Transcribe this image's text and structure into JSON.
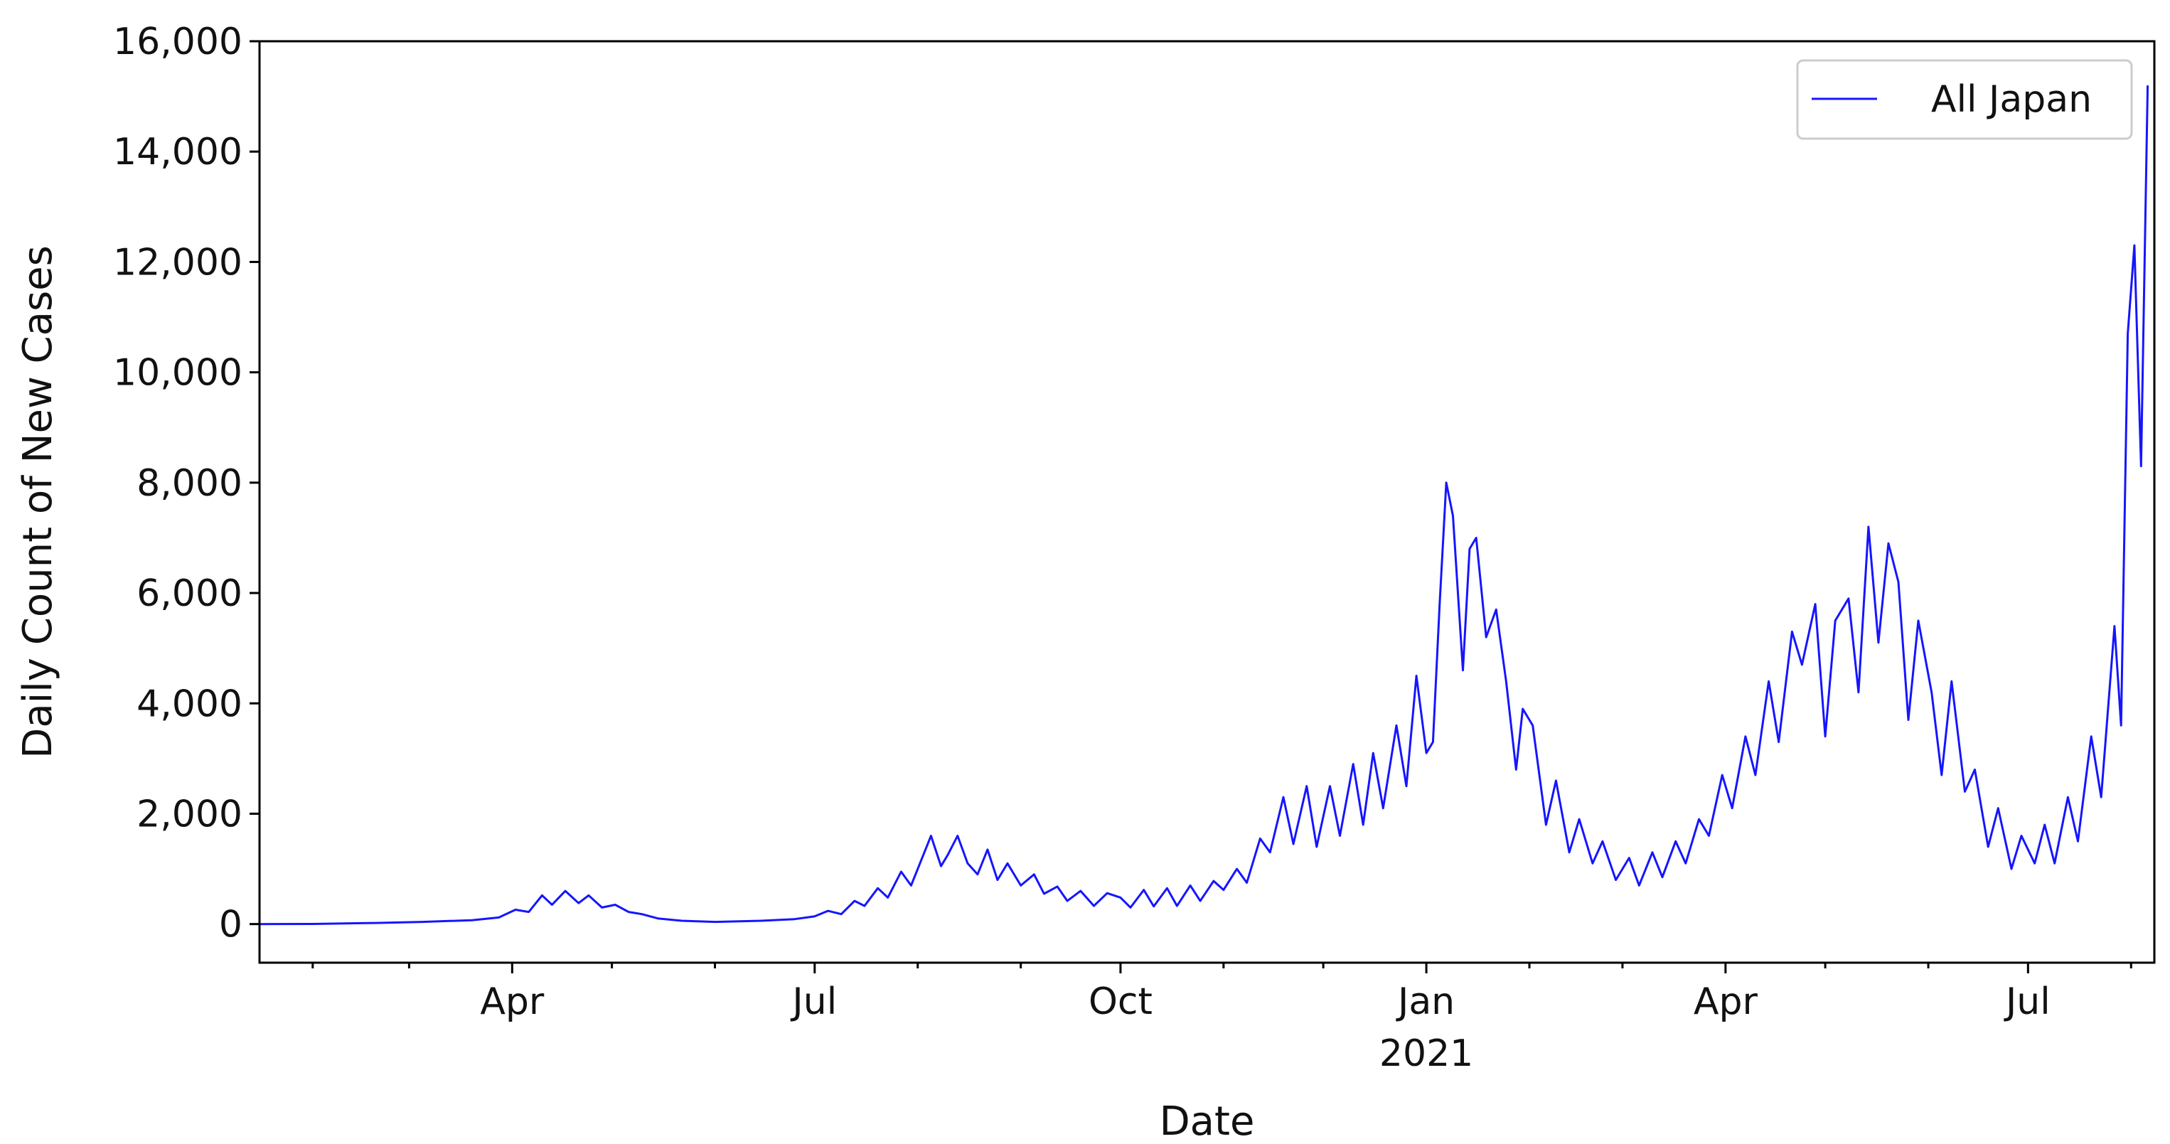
{
  "chart_data": {
    "type": "line",
    "xlabel": "Date",
    "ylabel": "Daily Count of New Cases",
    "ylim": [
      -700,
      16000
    ],
    "xlim": [
      "2020-01-16",
      "2021-08-08"
    ],
    "y_ticks": [
      0,
      2000,
      4000,
      6000,
      8000,
      10000,
      12000,
      14000,
      16000
    ],
    "y_tick_labels": [
      "0",
      "2,000",
      "4,000",
      "6,000",
      "8,000",
      "10,000",
      "12,000",
      "14,000",
      "16,000"
    ],
    "x_major_ticks": [
      {
        "date": "2020-04-01",
        "label": "Apr"
      },
      {
        "date": "2020-07-01",
        "label": "Jul"
      },
      {
        "date": "2020-10-01",
        "label": "Oct"
      },
      {
        "date": "2021-01-01",
        "label": "Jan",
        "year_label": "2021"
      },
      {
        "date": "2021-04-01",
        "label": "Apr"
      },
      {
        "date": "2021-07-01",
        "label": "Jul"
      }
    ],
    "x_minor_ticks": [
      "2020-02-01",
      "2020-03-01",
      "2020-05-01",
      "2020-06-01",
      "2020-08-01",
      "2020-09-01",
      "2020-11-01",
      "2020-12-01",
      "2021-02-01",
      "2021-03-01",
      "2021-05-01",
      "2021-06-01",
      "2021-08-01"
    ],
    "legend": {
      "position": "top-right"
    },
    "grid": false,
    "series": [
      {
        "name": "All Japan",
        "color": "#1515ff",
        "points": [
          [
            "2020-01-16",
            0
          ],
          [
            "2020-02-01",
            2
          ],
          [
            "2020-02-20",
            20
          ],
          [
            "2020-03-05",
            40
          ],
          [
            "2020-03-20",
            70
          ],
          [
            "2020-03-28",
            120
          ],
          [
            "2020-04-02",
            260
          ],
          [
            "2020-04-06",
            220
          ],
          [
            "2020-04-10",
            520
          ],
          [
            "2020-04-13",
            350
          ],
          [
            "2020-04-17",
            600
          ],
          [
            "2020-04-21",
            380
          ],
          [
            "2020-04-24",
            520
          ],
          [
            "2020-04-28",
            300
          ],
          [
            "2020-05-02",
            350
          ],
          [
            "2020-05-06",
            220
          ],
          [
            "2020-05-10",
            180
          ],
          [
            "2020-05-15",
            100
          ],
          [
            "2020-05-22",
            60
          ],
          [
            "2020-06-01",
            40
          ],
          [
            "2020-06-15",
            60
          ],
          [
            "2020-06-25",
            90
          ],
          [
            "2020-07-01",
            140
          ],
          [
            "2020-07-05",
            240
          ],
          [
            "2020-07-09",
            180
          ],
          [
            "2020-07-13",
            420
          ],
          [
            "2020-07-16",
            330
          ],
          [
            "2020-07-20",
            650
          ],
          [
            "2020-07-23",
            480
          ],
          [
            "2020-07-27",
            950
          ],
          [
            "2020-07-30",
            700
          ],
          [
            "2020-08-03",
            1300
          ],
          [
            "2020-08-05",
            1600
          ],
          [
            "2020-08-08",
            1050
          ],
          [
            "2020-08-10",
            1250
          ],
          [
            "2020-08-13",
            1600
          ],
          [
            "2020-08-16",
            1100
          ],
          [
            "2020-08-19",
            900
          ],
          [
            "2020-08-22",
            1350
          ],
          [
            "2020-08-25",
            800
          ],
          [
            "2020-08-28",
            1100
          ],
          [
            "2020-09-01",
            700
          ],
          [
            "2020-09-05",
            900
          ],
          [
            "2020-09-08",
            550
          ],
          [
            "2020-09-12",
            680
          ],
          [
            "2020-09-15",
            420
          ],
          [
            "2020-09-19",
            600
          ],
          [
            "2020-09-23",
            330
          ],
          [
            "2020-09-27",
            560
          ],
          [
            "2020-10-01",
            480
          ],
          [
            "2020-10-04",
            300
          ],
          [
            "2020-10-08",
            620
          ],
          [
            "2020-10-11",
            320
          ],
          [
            "2020-10-15",
            650
          ],
          [
            "2020-10-18",
            330
          ],
          [
            "2020-10-22",
            700
          ],
          [
            "2020-10-25",
            420
          ],
          [
            "2020-10-29",
            780
          ],
          [
            "2020-11-01",
            620
          ],
          [
            "2020-11-05",
            1000
          ],
          [
            "2020-11-08",
            750
          ],
          [
            "2020-11-12",
            1550
          ],
          [
            "2020-11-15",
            1300
          ],
          [
            "2020-11-19",
            2300
          ],
          [
            "2020-11-22",
            1450
          ],
          [
            "2020-11-26",
            2500
          ],
          [
            "2020-11-29",
            1400
          ],
          [
            "2020-12-03",
            2500
          ],
          [
            "2020-12-06",
            1600
          ],
          [
            "2020-12-10",
            2900
          ],
          [
            "2020-12-13",
            1800
          ],
          [
            "2020-12-16",
            3100
          ],
          [
            "2020-12-19",
            2100
          ],
          [
            "2020-12-23",
            3600
          ],
          [
            "2020-12-26",
            2500
          ],
          [
            "2020-12-29",
            4500
          ],
          [
            "2021-01-01",
            3100
          ],
          [
            "2021-01-03",
            3300
          ],
          [
            "2021-01-05",
            5800
          ],
          [
            "2021-01-07",
            8000
          ],
          [
            "2021-01-09",
            7400
          ],
          [
            "2021-01-12",
            4600
          ],
          [
            "2021-01-14",
            6800
          ],
          [
            "2021-01-16",
            7000
          ],
          [
            "2021-01-19",
            5200
          ],
          [
            "2021-01-22",
            5700
          ],
          [
            "2021-01-25",
            4400
          ],
          [
            "2021-01-28",
            2800
          ],
          [
            "2021-01-30",
            3900
          ],
          [
            "2021-02-02",
            3600
          ],
          [
            "2021-02-06",
            1800
          ],
          [
            "2021-02-09",
            2600
          ],
          [
            "2021-02-13",
            1300
          ],
          [
            "2021-02-16",
            1900
          ],
          [
            "2021-02-20",
            1100
          ],
          [
            "2021-02-23",
            1500
          ],
          [
            "2021-02-27",
            800
          ],
          [
            "2021-03-03",
            1200
          ],
          [
            "2021-03-06",
            700
          ],
          [
            "2021-03-10",
            1300
          ],
          [
            "2021-03-13",
            850
          ],
          [
            "2021-03-17",
            1500
          ],
          [
            "2021-03-20",
            1100
          ],
          [
            "2021-03-24",
            1900
          ],
          [
            "2021-03-27",
            1600
          ],
          [
            "2021-03-31",
            2700
          ],
          [
            "2021-04-03",
            2100
          ],
          [
            "2021-04-07",
            3400
          ],
          [
            "2021-04-10",
            2700
          ],
          [
            "2021-04-14",
            4400
          ],
          [
            "2021-04-17",
            3300
          ],
          [
            "2021-04-21",
            5300
          ],
          [
            "2021-04-24",
            4700
          ],
          [
            "2021-04-28",
            5800
          ],
          [
            "2021-05-01",
            3400
          ],
          [
            "2021-05-04",
            5500
          ],
          [
            "2021-05-08",
            5900
          ],
          [
            "2021-05-11",
            4200
          ],
          [
            "2021-05-14",
            7200
          ],
          [
            "2021-05-17",
            5100
          ],
          [
            "2021-05-20",
            6900
          ],
          [
            "2021-05-23",
            6200
          ],
          [
            "2021-05-26",
            3700
          ],
          [
            "2021-05-29",
            5500
          ],
          [
            "2021-06-02",
            4200
          ],
          [
            "2021-06-05",
            2700
          ],
          [
            "2021-06-08",
            4400
          ],
          [
            "2021-06-12",
            2400
          ],
          [
            "2021-06-15",
            2800
          ],
          [
            "2021-06-19",
            1400
          ],
          [
            "2021-06-22",
            2100
          ],
          [
            "2021-06-26",
            1000
          ],
          [
            "2021-06-29",
            1600
          ],
          [
            "2021-07-03",
            1100
          ],
          [
            "2021-07-06",
            1800
          ],
          [
            "2021-07-09",
            1100
          ],
          [
            "2021-07-13",
            2300
          ],
          [
            "2021-07-16",
            1500
          ],
          [
            "2021-07-20",
            3400
          ],
          [
            "2021-07-23",
            2300
          ],
          [
            "2021-07-27",
            5400
          ],
          [
            "2021-07-29",
            3600
          ],
          [
            "2021-07-31",
            10700
          ],
          [
            "2021-08-02",
            12300
          ],
          [
            "2021-08-04",
            8300
          ],
          [
            "2021-08-06",
            15200
          ]
        ]
      }
    ]
  }
}
